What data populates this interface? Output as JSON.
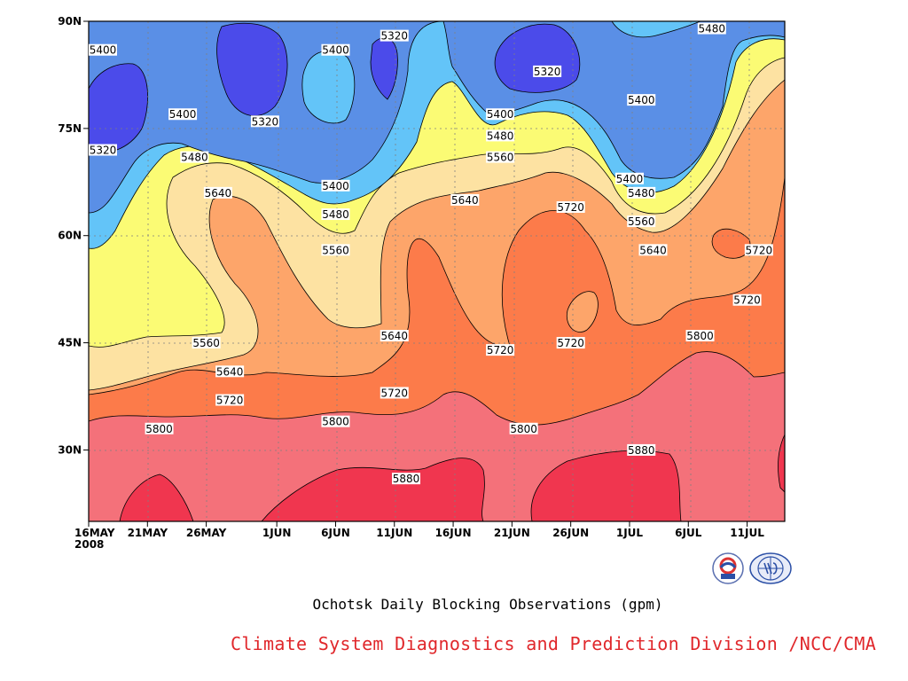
{
  "chart_data": {
    "type": "contour",
    "title": "Ochotsk Daily Blocking Observations (gpm)",
    "credit": "Climate System Diagnostics and Prediction Division /NCC/CMA",
    "x_ticks": [
      "16MAY",
      "21MAY",
      "26MAY",
      "1JUN",
      "6JUN",
      "11JUN",
      "16JUN",
      "21JUN",
      "26JUN",
      "1JUL",
      "6JUL",
      "11JUL"
    ],
    "x_year": "2008",
    "y_ticks": [
      "30N",
      "45N",
      "60N",
      "75N",
      "90N"
    ],
    "xlim": [
      "16MAY2008",
      "14JUL2008"
    ],
    "ylim": [
      20,
      90
    ],
    "contour_levels": [
      5320,
      5400,
      5480,
      5560,
      5640,
      5720,
      5800,
      5880
    ],
    "colors": {
      "below_5320": "#4b4bea",
      "5320_5400": "#5a8fe6",
      "5400_5480": "#63c4f8",
      "5480_5560": "#fbfb74",
      "5560_5640": "#fde2a2",
      "5640_5720": "#fda56a",
      "5720_5800": "#fc7b4a",
      "5800_5880": "#f4717a",
      "above_5880": "#f0364f"
    },
    "contour_labels": [
      {
        "text": "5400",
        "date": "16MAY",
        "lat": 86
      },
      {
        "text": "5320",
        "date": "16MAY",
        "lat": 72
      },
      {
        "text": "5400",
        "date": "24MAY",
        "lat": 77
      },
      {
        "text": "5480",
        "date": "25MAY",
        "lat": 71
      },
      {
        "text": "5640",
        "date": "27MAY",
        "lat": 66
      },
      {
        "text": "5560",
        "date": "26MAY",
        "lat": 45
      },
      {
        "text": "5640",
        "date": "28MAY",
        "lat": 41
      },
      {
        "text": "5720",
        "date": "28MAY",
        "lat": 37
      },
      {
        "text": "5800",
        "date": "22MAY",
        "lat": 33
      },
      {
        "text": "5320",
        "date": "31MAY",
        "lat": 76
      },
      {
        "text": "5400",
        "date": "6JUN",
        "lat": 86
      },
      {
        "text": "5320",
        "date": "11JUN",
        "lat": 88
      },
      {
        "text": "5400",
        "date": "6JUN",
        "lat": 67
      },
      {
        "text": "5480",
        "date": "6JUN",
        "lat": 63
      },
      {
        "text": "5560",
        "date": "6JUN",
        "lat": 58
      },
      {
        "text": "5640",
        "date": "11JUN",
        "lat": 46
      },
      {
        "text": "5720",
        "date": "11JUN",
        "lat": 38
      },
      {
        "text": "5800",
        "date": "6JUN",
        "lat": 34
      },
      {
        "text": "5880",
        "date": "12JUN",
        "lat": 26
      },
      {
        "text": "5640",
        "date": "17JUN",
        "lat": 65
      },
      {
        "text": "5400",
        "date": "20JUN",
        "lat": 77
      },
      {
        "text": "5480",
        "date": "20JUN",
        "lat": 74
      },
      {
        "text": "5560",
        "date": "20JUN",
        "lat": 71
      },
      {
        "text": "5720",
        "date": "20JUN",
        "lat": 44
      },
      {
        "text": "5800",
        "date": "22JUN",
        "lat": 33
      },
      {
        "text": "5320",
        "date": "24JUN",
        "lat": 83
      },
      {
        "text": "5720",
        "date": "26JUN",
        "lat": 64
      },
      {
        "text": "5720",
        "date": "26JUN",
        "lat": 45
      },
      {
        "text": "5400",
        "date": "2JUL",
        "lat": 79
      },
      {
        "text": "5400",
        "date": "1JUL",
        "lat": 68
      },
      {
        "text": "5480",
        "date": "2JUL",
        "lat": 66
      },
      {
        "text": "5560",
        "date": "2JUL",
        "lat": 62
      },
      {
        "text": "5640",
        "date": "3JUL",
        "lat": 58
      },
      {
        "text": "5880",
        "date": "2JUL",
        "lat": 30
      },
      {
        "text": "5480",
        "date": "8JUL",
        "lat": 89
      },
      {
        "text": "5800",
        "date": "7JUL",
        "lat": 46
      },
      {
        "text": "5720",
        "date": "11JUL",
        "lat": 51
      },
      {
        "text": "5720",
        "date": "12JUL",
        "lat": 58
      }
    ]
  }
}
